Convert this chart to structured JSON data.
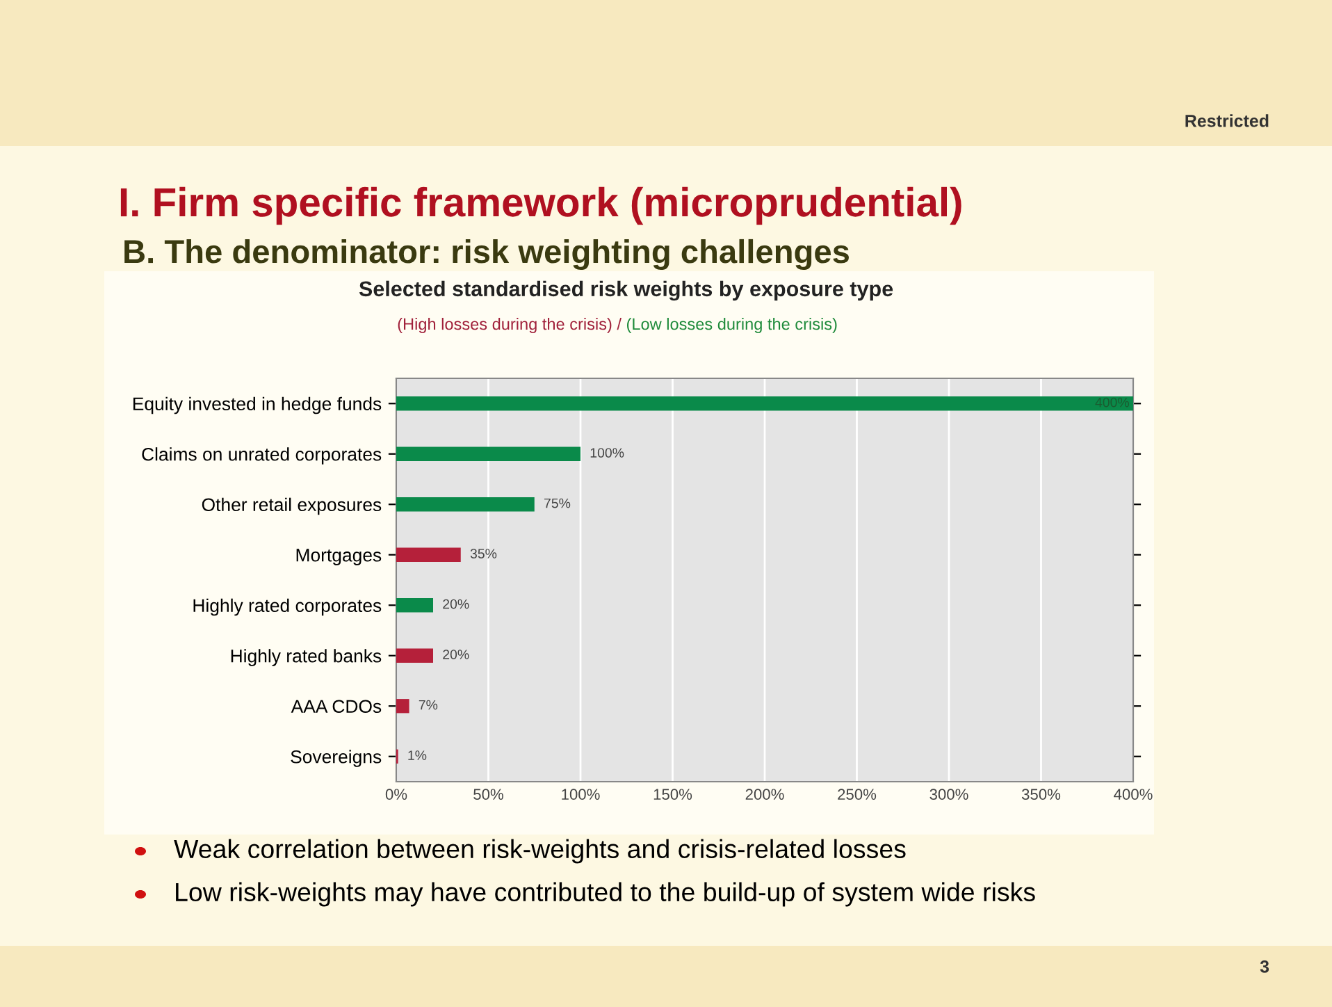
{
  "chart_data": {
    "type": "bar",
    "orientation": "horizontal",
    "title": "Selected standardised risk weights by exposure type",
    "subtitle": "(High losses during the crisis) / (Low losses during the crisis)",
    "categories": [
      "Equity invested in hedge funds",
      "Claims on unrated corporates",
      "Other retail exposures",
      "Mortgages",
      "Highly rated corporates",
      "Highly rated banks",
      "AAA CDOs",
      "Sovereigns"
    ],
    "values": [
      400,
      100,
      75,
      35,
      20,
      20,
      7,
      1
    ],
    "colors": [
      "#0a8a4a",
      "#0a8a4a",
      "#0a8a4a",
      "#b5203a",
      "#0a8a4a",
      "#b5203a",
      "#b5203a",
      "#b5203a"
    ],
    "value_labels": [
      "400%",
      "100%",
      "75%",
      "35%",
      "20%",
      "20%",
      "7%",
      "1%"
    ],
    "xlim": [
      0,
      400
    ],
    "xticks": [
      {
        "value": 0,
        "label": "0%"
      },
      {
        "value": 50,
        "label": "50%"
      },
      {
        "value": 100,
        "label": "100%"
      },
      {
        "value": 150,
        "label": "150%"
      },
      {
        "value": 200,
        "label": "200%"
      },
      {
        "value": 250,
        "label": "250%"
      },
      {
        "value": 300,
        "label": "300%"
      },
      {
        "value": 350,
        "label": "350%"
      },
      {
        "value": 400,
        "label": "400%"
      }
    ],
    "grid": "x",
    "legend": false,
    "annotations": [
      "Restricted",
      "I. Firm specific framework (microprudential)",
      "B. The denominator: risk weighting challenges",
      "Weak correlation between risk-weights and crisis-related losses",
      "Low risk-weights may have contributed to the build-up of system wide risks",
      "3"
    ]
  }
}
